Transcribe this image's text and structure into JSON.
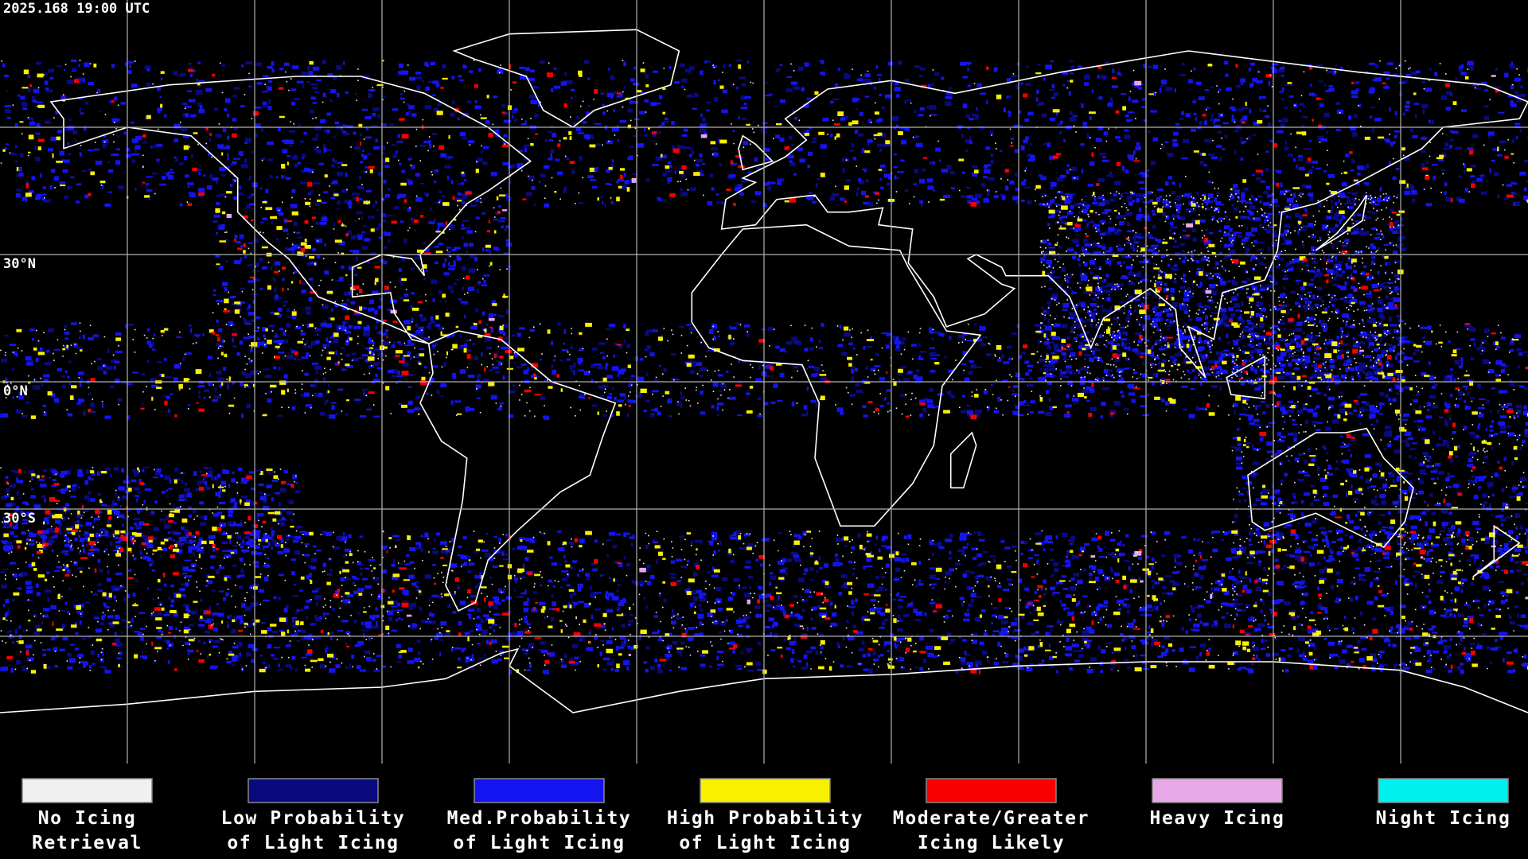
{
  "header": {
    "timestamp": "2025.168 19:00 UTC"
  },
  "map": {
    "latitude_labels": [
      "30°N",
      "0°N",
      "30°S"
    ]
  },
  "legend": [
    {
      "lines": [
        "No Icing",
        "Retrieval"
      ],
      "color": "#f0f0f0"
    },
    {
      "lines": [
        "Low Probability",
        "of Light Icing"
      ],
      "color": "#0a0a80"
    },
    {
      "lines": [
        "Med.Probability",
        "of Light Icing"
      ],
      "color": "#1414f0"
    },
    {
      "lines": [
        "High Probability",
        "of Light Icing"
      ],
      "color": "#f8f000"
    },
    {
      "lines": [
        "Moderate/Greater",
        "Icing Likely"
      ],
      "color": "#f80000"
    },
    {
      "lines": [
        "Heavy Icing"
      ],
      "color": "#e8a8e8"
    },
    {
      "lines": [
        "Night Icing"
      ],
      "color": "#00f0f0"
    }
  ]
}
